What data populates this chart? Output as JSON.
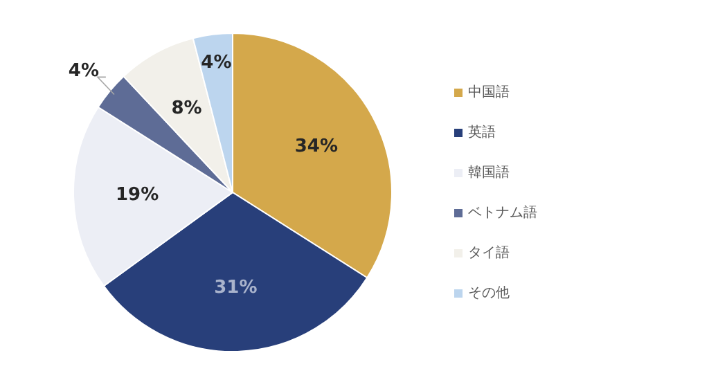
{
  "chart_data": {
    "type": "pie",
    "categories": [
      "中国語",
      "英語",
      "韓国語",
      "ベトナム語",
      "タイ語",
      "その他"
    ],
    "values": [
      34,
      31,
      19,
      4,
      8,
      4
    ],
    "colors": [
      "#d4a84b",
      "#283f7a",
      "#eceef5",
      "#5e6c96",
      "#f2f0ea",
      "#bcd5ee"
    ],
    "value_labels": [
      "34%",
      "31%",
      "19%",
      "4%",
      "8%",
      "4%"
    ],
    "legend": "right"
  }
}
